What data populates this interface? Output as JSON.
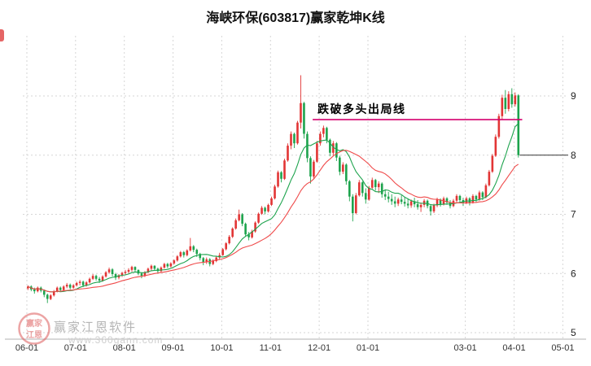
{
  "watermark": {
    "brand": "赢家江恩软件",
    "site": "www.360gann.com",
    "seal_line1": "赢家",
    "seal_line2": "江恩"
  },
  "chart_data": {
    "type": "candlestick",
    "title": "海峡环保(603817)赢家乾坤K线",
    "x_axis": {
      "labels": [
        "06-01",
        "07-01",
        "08-01",
        "09-01",
        "10-01",
        "11-01",
        "12-01",
        "01-01",
        "03-01",
        "04-01",
        "05-01"
      ],
      "label_month_offsets": [
        0,
        1,
        2,
        3,
        4,
        5,
        6,
        7,
        9,
        10,
        11
      ],
      "candles_per_month": 15
    },
    "y_axis": {
      "ticks": [
        9,
        8,
        7,
        6,
        5
      ],
      "range": [
        4.9,
        9.6
      ],
      "side": "right"
    },
    "colors": {
      "up": "#e23535",
      "down": "#1da34d",
      "ma_long": "#ef4a4a",
      "ma_short": "#1da34d",
      "signal": "#d4006e",
      "grid": "#d6d6d6",
      "axis": "#b0b0b0",
      "last_price": "#333333"
    },
    "ma": [
      {
        "name": "short",
        "period": 10
      },
      {
        "name": "long",
        "period": 22
      }
    ],
    "signal_line": {
      "label": "跌破多头出局线",
      "price": 8.6,
      "from_candle": 88
    },
    "last_price": 8.0,
    "candles_ohlc": [
      [
        5.75,
        5.8,
        5.72,
        5.78
      ],
      [
        5.78,
        5.8,
        5.7,
        5.73
      ],
      [
        5.73,
        5.76,
        5.66,
        5.7
      ],
      [
        5.7,
        5.78,
        5.68,
        5.76
      ],
      [
        5.76,
        5.78,
        5.68,
        5.71
      ],
      [
        5.71,
        5.73,
        5.6,
        5.64
      ],
      [
        5.64,
        5.66,
        5.5,
        5.57
      ],
      [
        5.57,
        5.65,
        5.55,
        5.63
      ],
      [
        5.63,
        5.72,
        5.61,
        5.7
      ],
      [
        5.7,
        5.78,
        5.68,
        5.76
      ],
      [
        5.76,
        5.78,
        5.69,
        5.72
      ],
      [
        5.72,
        5.8,
        5.7,
        5.78
      ],
      [
        5.78,
        5.84,
        5.75,
        5.81
      ],
      [
        5.81,
        5.83,
        5.73,
        5.76
      ],
      [
        5.76,
        5.82,
        5.74,
        5.8
      ],
      [
        5.8,
        5.86,
        5.78,
        5.84
      ],
      [
        5.84,
        5.89,
        5.8,
        5.86
      ],
      [
        5.86,
        5.88,
        5.77,
        5.8
      ],
      [
        5.8,
        5.87,
        5.78,
        5.85
      ],
      [
        5.85,
        5.93,
        5.83,
        5.91
      ],
      [
        5.91,
        5.99,
        5.89,
        5.96
      ],
      [
        5.96,
        5.98,
        5.88,
        5.91
      ],
      [
        5.91,
        5.94,
        5.84,
        5.88
      ],
      [
        5.88,
        5.97,
        5.86,
        5.95
      ],
      [
        5.95,
        6.04,
        5.93,
        6.02
      ],
      [
        6.02,
        6.1,
        6.0,
        6.07
      ],
      [
        6.07,
        6.09,
        5.95,
        5.99
      ],
      [
        5.99,
        6.01,
        5.89,
        5.93
      ],
      [
        5.93,
        5.99,
        5.9,
        5.97
      ],
      [
        5.97,
        6.03,
        5.94,
        6.01
      ],
      [
        6.01,
        6.06,
        5.98,
        6.03
      ],
      [
        6.03,
        6.09,
        6.0,
        6.06
      ],
      [
        6.06,
        6.13,
        6.03,
        6.11
      ],
      [
        6.11,
        6.12,
        6.03,
        6.06
      ],
      [
        6.06,
        6.07,
        5.97,
        6.0
      ],
      [
        6.0,
        6.02,
        5.92,
        5.96
      ],
      [
        5.96,
        6.04,
        5.94,
        6.02
      ],
      [
        6.02,
        6.1,
        6.0,
        6.08
      ],
      [
        6.08,
        6.15,
        6.05,
        6.13
      ],
      [
        6.13,
        6.14,
        6.05,
        6.08
      ],
      [
        6.08,
        6.1,
        6.0,
        6.04
      ],
      [
        6.04,
        6.12,
        6.02,
        6.1
      ],
      [
        6.1,
        6.18,
        6.08,
        6.16
      ],
      [
        6.16,
        6.18,
        6.09,
        6.12
      ],
      [
        6.12,
        6.19,
        6.1,
        6.17
      ],
      [
        6.17,
        6.24,
        6.15,
        6.22
      ],
      [
        6.22,
        6.31,
        6.2,
        6.29
      ],
      [
        6.29,
        6.38,
        6.27,
        6.36
      ],
      [
        6.36,
        6.38,
        6.27,
        6.31
      ],
      [
        6.31,
        6.41,
        6.29,
        6.39
      ],
      [
        6.39,
        6.6,
        6.37,
        6.46
      ],
      [
        6.46,
        6.48,
        6.36,
        6.4
      ],
      [
        6.4,
        6.42,
        6.28,
        6.33
      ],
      [
        6.33,
        6.35,
        6.22,
        6.26
      ],
      [
        6.26,
        6.28,
        6.14,
        6.19
      ],
      [
        6.19,
        6.27,
        6.16,
        6.24
      ],
      [
        6.24,
        6.26,
        6.12,
        6.16
      ],
      [
        6.16,
        6.24,
        6.14,
        6.21
      ],
      [
        6.21,
        6.3,
        6.19,
        6.27
      ],
      [
        6.27,
        6.35,
        6.24,
        6.31
      ],
      [
        6.31,
        6.43,
        6.3,
        6.41
      ],
      [
        6.41,
        6.53,
        6.39,
        6.51
      ],
      [
        6.51,
        6.65,
        6.49,
        6.62
      ],
      [
        6.62,
        6.78,
        6.6,
        6.76
      ],
      [
        6.76,
        6.93,
        6.74,
        6.9
      ],
      [
        6.9,
        7.08,
        6.88,
        7.0
      ],
      [
        7.0,
        7.02,
        6.8,
        6.84
      ],
      [
        6.84,
        6.86,
        6.62,
        6.66
      ],
      [
        6.66,
        6.7,
        6.56,
        6.61
      ],
      [
        6.61,
        6.74,
        6.59,
        6.71
      ],
      [
        6.71,
        6.88,
        6.69,
        6.86
      ],
      [
        6.86,
        7.03,
        6.84,
        7.01
      ],
      [
        7.01,
        7.14,
        6.99,
        7.11
      ],
      [
        7.11,
        7.13,
        7.0,
        7.05
      ],
      [
        7.05,
        7.18,
        7.03,
        7.16
      ],
      [
        7.16,
        7.3,
        7.14,
        7.27
      ],
      [
        7.27,
        7.5,
        7.25,
        7.47
      ],
      [
        7.47,
        7.74,
        7.45,
        7.71
      ],
      [
        7.71,
        7.73,
        7.54,
        7.6
      ],
      [
        7.6,
        7.94,
        7.58,
        7.91
      ],
      [
        7.91,
        8.2,
        7.89,
        8.16
      ],
      [
        8.16,
        8.4,
        8.1,
        8.36
      ],
      [
        8.36,
        8.38,
        8.12,
        8.2
      ],
      [
        8.2,
        8.58,
        8.18,
        8.55
      ],
      [
        8.55,
        9.35,
        8.45,
        8.88
      ],
      [
        8.88,
        8.9,
        8.28,
        8.36
      ],
      [
        8.36,
        8.4,
        7.88,
        7.95
      ],
      [
        7.95,
        7.98,
        7.52,
        7.64
      ],
      [
        7.64,
        7.92,
        7.6,
        7.89
      ],
      [
        7.89,
        8.24,
        7.87,
        8.2
      ],
      [
        8.2,
        8.4,
        8.16,
        8.36
      ],
      [
        8.36,
        8.5,
        8.3,
        8.46
      ],
      [
        8.46,
        8.48,
        8.2,
        8.26
      ],
      [
        8.26,
        8.28,
        7.98,
        8.04
      ],
      [
        8.04,
        8.24,
        8.0,
        8.2
      ],
      [
        8.2,
        8.22,
        7.9,
        7.96
      ],
      [
        7.96,
        7.99,
        7.66,
        7.72
      ],
      [
        7.72,
        7.88,
        7.68,
        7.84
      ],
      [
        7.84,
        7.86,
        7.5,
        7.56
      ],
      [
        7.56,
        7.58,
        7.22,
        7.3
      ],
      [
        7.3,
        7.34,
        6.88,
        7.02
      ],
      [
        7.02,
        7.36,
        7.0,
        7.32
      ],
      [
        7.32,
        7.58,
        7.3,
        7.54
      ],
      [
        7.54,
        7.56,
        7.3,
        7.36
      ],
      [
        7.36,
        7.44,
        7.18,
        7.25
      ],
      [
        7.25,
        7.48,
        7.23,
        7.45
      ],
      [
        7.45,
        7.62,
        7.43,
        7.58
      ],
      [
        7.58,
        7.6,
        7.4,
        7.46
      ],
      [
        7.46,
        7.56,
        7.36,
        7.52
      ],
      [
        7.52,
        7.54,
        7.28,
        7.34
      ],
      [
        7.34,
        7.42,
        7.24,
        7.3
      ],
      [
        7.3,
        7.38,
        7.2,
        7.26
      ],
      [
        7.26,
        7.34,
        7.16,
        7.22
      ],
      [
        7.22,
        7.3,
        7.12,
        7.18
      ],
      [
        7.18,
        7.28,
        7.14,
        7.25
      ],
      [
        7.25,
        7.32,
        7.17,
        7.21
      ],
      [
        7.21,
        7.29,
        7.13,
        7.18
      ],
      [
        7.18,
        7.26,
        7.1,
        7.15
      ],
      [
        7.15,
        7.25,
        7.11,
        7.22
      ],
      [
        7.22,
        7.28,
        7.12,
        7.17
      ],
      [
        7.17,
        7.24,
        7.08,
        7.12
      ],
      [
        7.12,
        7.2,
        7.04,
        7.16
      ],
      [
        7.16,
        7.26,
        7.12,
        7.23
      ],
      [
        7.23,
        7.25,
        7.1,
        7.14
      ],
      [
        7.14,
        7.16,
        6.98,
        7.05
      ],
      [
        7.05,
        7.18,
        7.02,
        7.15
      ],
      [
        7.15,
        7.28,
        7.12,
        7.25
      ],
      [
        7.25,
        7.27,
        7.13,
        7.17
      ],
      [
        7.17,
        7.3,
        7.15,
        7.27
      ],
      [
        7.27,
        7.29,
        7.16,
        7.2
      ],
      [
        7.2,
        7.24,
        7.1,
        7.14
      ],
      [
        7.14,
        7.26,
        7.12,
        7.23
      ],
      [
        7.23,
        7.34,
        7.2,
        7.31
      ],
      [
        7.31,
        7.33,
        7.2,
        7.24
      ],
      [
        7.24,
        7.28,
        7.14,
        7.19
      ],
      [
        7.19,
        7.3,
        7.17,
        7.27
      ],
      [
        7.27,
        7.29,
        7.15,
        7.2
      ],
      [
        7.2,
        7.34,
        7.18,
        7.31
      ],
      [
        7.31,
        7.33,
        7.2,
        7.25
      ],
      [
        7.25,
        7.4,
        7.23,
        7.37
      ],
      [
        7.37,
        7.39,
        7.24,
        7.29
      ],
      [
        7.29,
        7.52,
        7.27,
        7.49
      ],
      [
        7.49,
        7.75,
        7.47,
        7.72
      ],
      [
        7.72,
        8.02,
        7.7,
        7.99
      ],
      [
        7.99,
        8.35,
        7.97,
        8.31
      ],
      [
        8.31,
        8.7,
        8.28,
        8.66
      ],
      [
        8.66,
        9.02,
        8.6,
        8.97
      ],
      [
        8.97,
        9.1,
        8.7,
        8.78
      ],
      [
        8.78,
        9.08,
        8.74,
        9.03
      ],
      [
        9.03,
        9.13,
        8.8,
        8.86
      ],
      [
        8.86,
        9.06,
        8.82,
        9.01
      ],
      [
        9.01,
        9.03,
        7.96,
        8.0
      ]
    ]
  }
}
